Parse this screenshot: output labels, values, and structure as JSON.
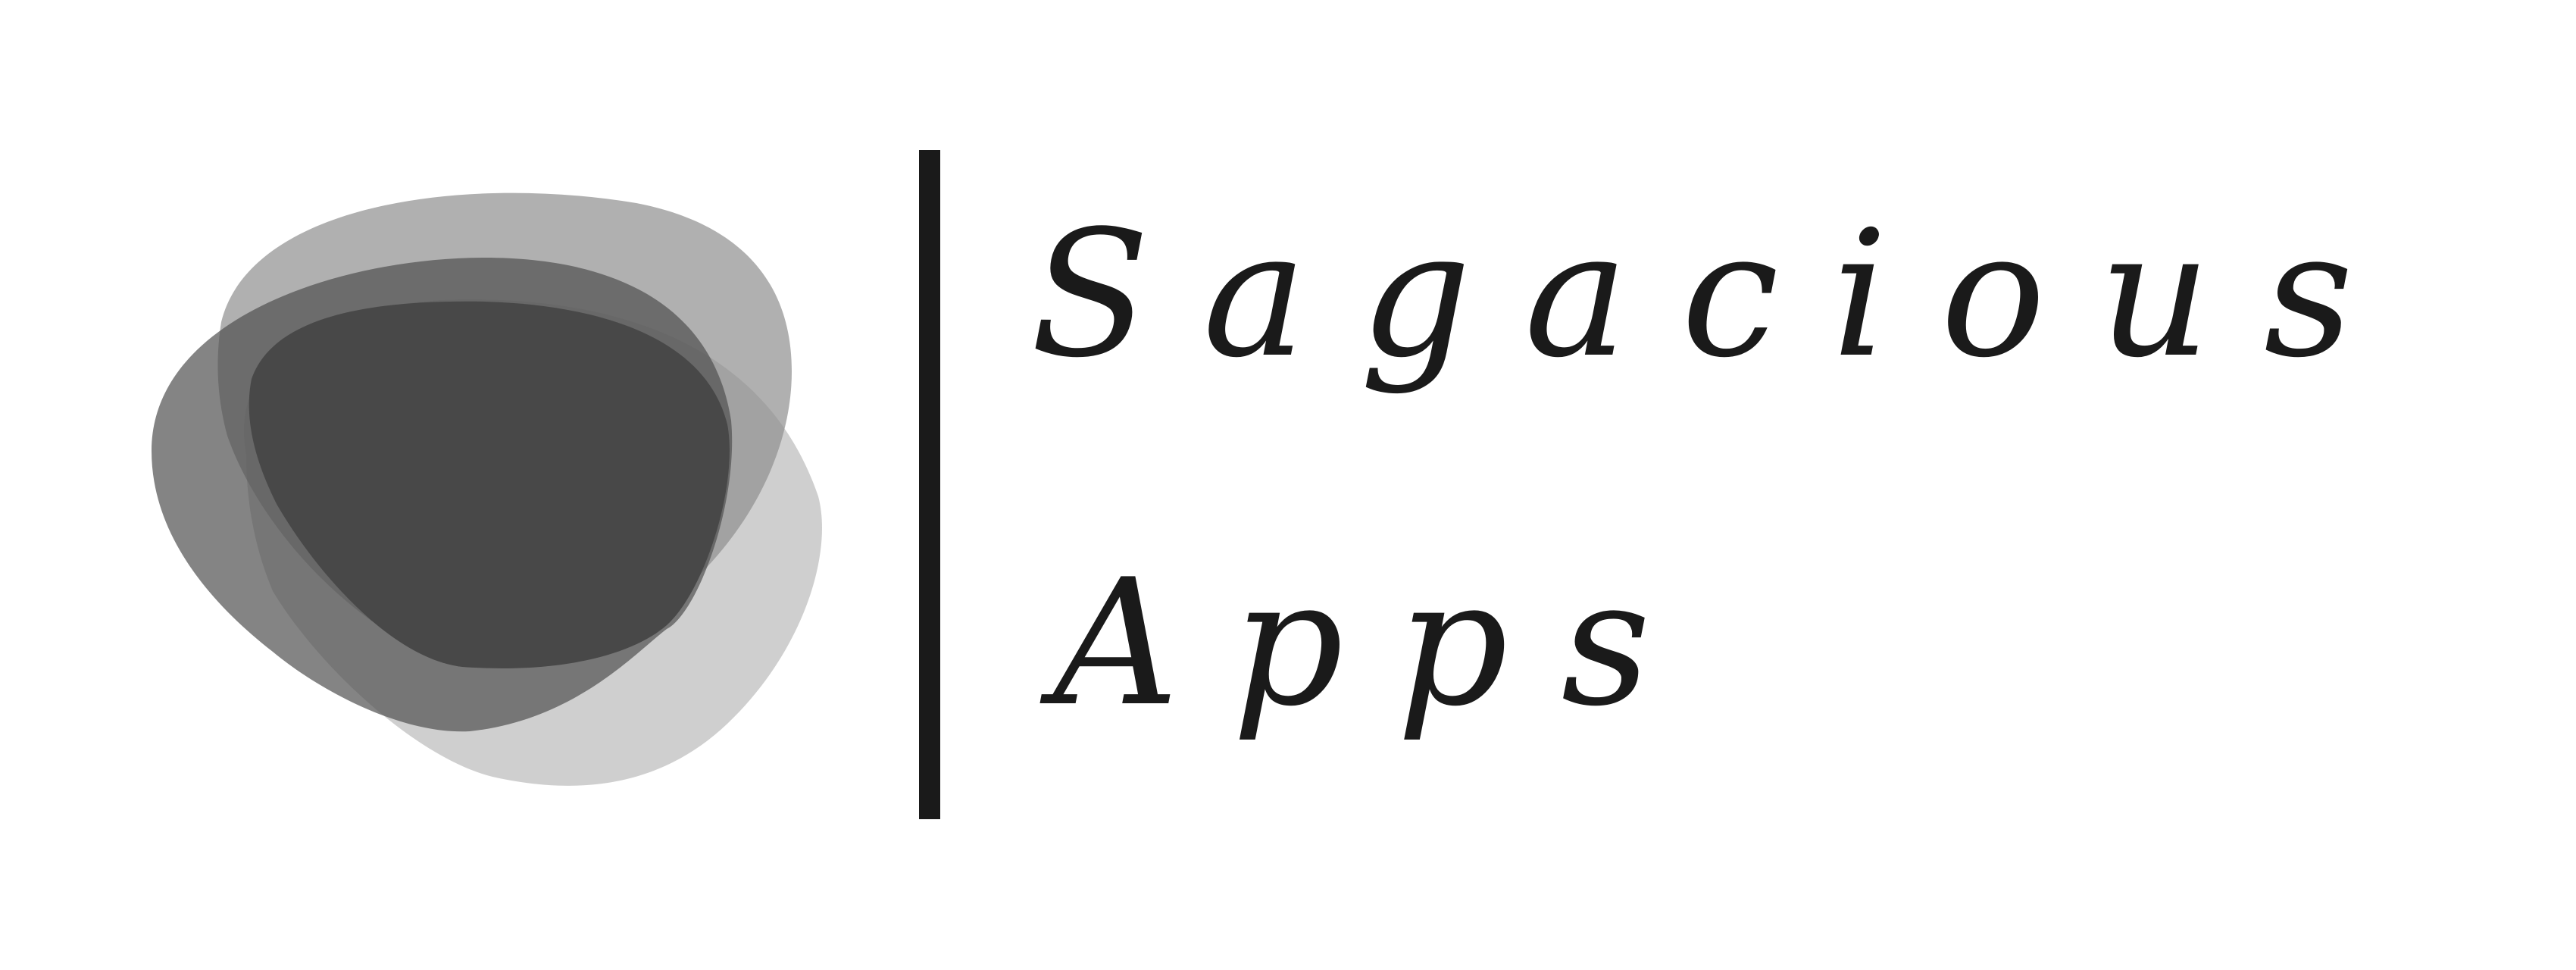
{
  "logo": {
    "brand_line_1": "Sagacious",
    "brand_line_2": "Apps",
    "icon": "overlapping-blobs-icon",
    "colors": {
      "background": "#ffffff",
      "text": "#1a1a1a",
      "divider": "#1a1a1a",
      "blob_light": "#cccccc",
      "blob_mid": "#b1b1b1",
      "blob_dark": "#7e7e7e",
      "blob_core": "#484848"
    }
  }
}
